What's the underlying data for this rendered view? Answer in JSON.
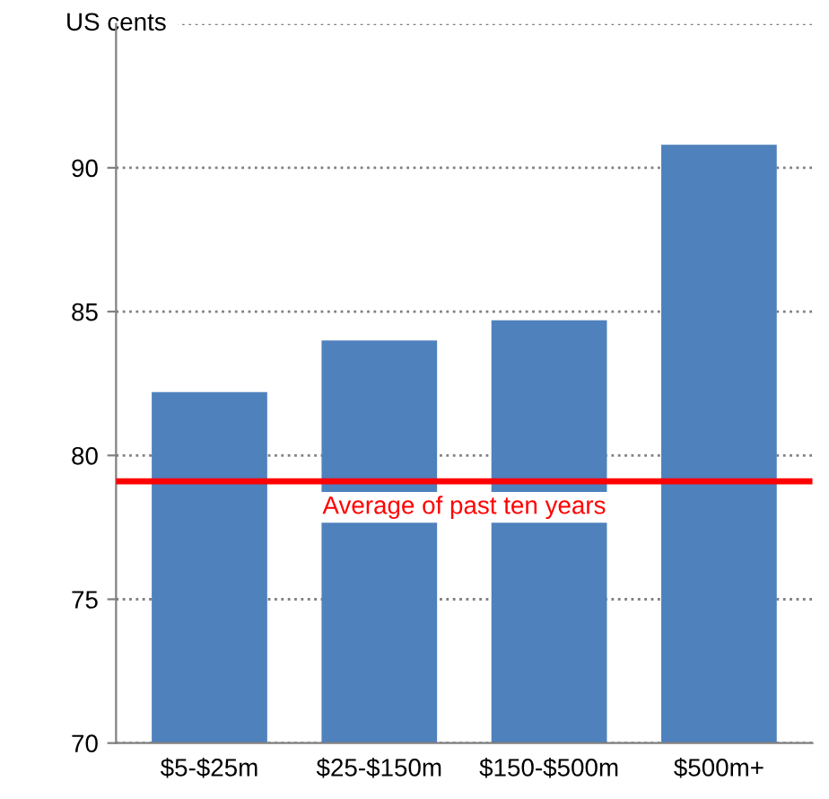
{
  "chart_data": {
    "type": "bar",
    "ylabel": "US cents",
    "categories": [
      "$5-$25m",
      "$25-$150m",
      "$150-$500m",
      "$500m+"
    ],
    "values": [
      82.2,
      84.0,
      84.7,
      90.8
    ],
    "color": "#4f81bd",
    "ylim": [
      70,
      95
    ],
    "yticks": [
      70,
      75,
      80,
      85,
      90,
      {
        "value": 95,
        "label": null
      }
    ],
    "grid": "y",
    "ref_lines": [
      {
        "axis": "y",
        "value": 79.1,
        "label": "Average of past ten years",
        "color": "#ff0000"
      }
    ]
  }
}
